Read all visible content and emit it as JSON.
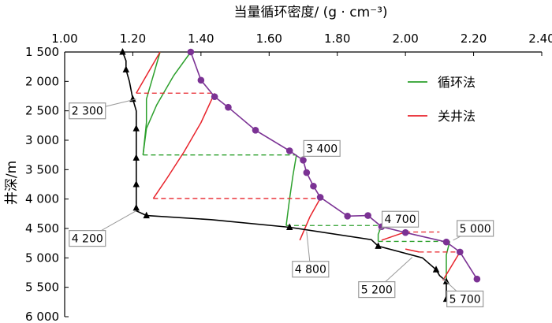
{
  "chart_data": {
    "type": "line",
    "title": "当量循环密度/ (g · cm⁻³)",
    "xlabel": "当量循环密度/ (g · cm⁻³)",
    "ylabel": "井深/m",
    "xlim": [
      1.0,
      2.4
    ],
    "ylim": [
      1500,
      6000
    ],
    "y_inverted": true,
    "x_axis_position": "top",
    "x_ticks": [
      1.0,
      1.2,
      1.4,
      1.6,
      1.8,
      2.0,
      2.2,
      2.4
    ],
    "x_tick_labels": [
      "1.00",
      "1.20",
      "1.40",
      "1.60",
      "1.80",
      "2.00",
      "2.20",
      "2.40"
    ],
    "y_ticks": [
      1500,
      2000,
      2500,
      3000,
      3500,
      4000,
      4500,
      5000,
      5500,
      6000
    ],
    "y_tick_labels": [
      "1 500",
      "2 000",
      "2 500",
      "3 000",
      "3 500",
      "4 000",
      "4 500",
      "5 000",
      "5 500",
      "6 000"
    ],
    "grid": false,
    "legend": {
      "position": "top-right",
      "entries": [
        {
          "label": "循环法",
          "color": "#2ca02c"
        },
        {
          "label": "关井法",
          "color": "#e8232b"
        }
      ]
    },
    "series": [
      {
        "name": "",
        "color": "#7b3294",
        "marker": "circle",
        "points": [
          [
            1.37,
            1500
          ],
          [
            1.4,
            1980
          ],
          [
            1.44,
            2260
          ],
          [
            1.48,
            2440
          ],
          [
            1.56,
            2830
          ],
          [
            1.66,
            3180
          ],
          [
            1.7,
            3340
          ],
          [
            1.71,
            3550
          ],
          [
            1.73,
            3780
          ],
          [
            1.75,
            3970
          ],
          [
            1.83,
            4290
          ],
          [
            1.89,
            4280
          ],
          [
            1.93,
            4470
          ],
          [
            2.0,
            4570
          ],
          [
            2.12,
            4730
          ],
          [
            2.16,
            4900
          ],
          [
            2.21,
            5360
          ]
        ]
      },
      {
        "name": "",
        "color": "#000000",
        "marker": "triangle",
        "points": [
          [
            1.17,
            1500
          ],
          [
            1.18,
            1650
          ],
          [
            1.18,
            1800
          ],
          [
            1.19,
            2000
          ],
          [
            1.2,
            2300
          ],
          [
            1.21,
            2500
          ],
          [
            1.21,
            2800
          ],
          [
            1.21,
            3000
          ],
          [
            1.21,
            3300
          ],
          [
            1.21,
            3500
          ],
          [
            1.21,
            3750
          ],
          [
            1.21,
            4000
          ],
          [
            1.21,
            4150
          ],
          [
            1.21,
            4200
          ],
          [
            1.24,
            4280
          ],
          [
            1.43,
            4350
          ],
          [
            1.66,
            4480
          ],
          [
            1.9,
            4690
          ],
          [
            1.92,
            4800
          ],
          [
            2.05,
            5000
          ],
          [
            2.09,
            5200
          ],
          [
            2.1,
            5300
          ],
          [
            2.12,
            5400
          ],
          [
            2.12,
            5700
          ]
        ]
      }
    ],
    "circulation_method": [
      {
        "depth_label": "2 300",
        "curve": [
          [
            1.28,
            1500
          ],
          [
            1.26,
            1900
          ],
          [
            1.24,
            2300
          ],
          [
            1.24,
            2700
          ],
          [
            1.23,
            3250
          ]
        ],
        "link_depth": 3250,
        "link_to": 1.68
      },
      {
        "depth_label": "3 400",
        "curve": [
          [
            1.37,
            1500
          ],
          [
            1.32,
            1900
          ],
          [
            1.27,
            2400
          ],
          [
            1.24,
            2800
          ],
          [
            1.23,
            3250
          ]
        ]
      },
      {
        "depth_label": "4 800",
        "curve": [
          [
            1.68,
            3250
          ],
          [
            1.67,
            3600
          ],
          [
            1.66,
            4000
          ],
          [
            1.65,
            4450
          ]
        ],
        "link_depth": 4450,
        "link_to": 1.93
      },
      {
        "depth_label": "4 700",
        "curve": [
          [
            1.93,
            4450
          ],
          [
            1.92,
            4600
          ],
          [
            1.92,
            4720
          ]
        ],
        "link_depth": 4720,
        "link_to": 2.13
      },
      {
        "depth_label": "5 000",
        "curve": [
          [
            2.13,
            4720
          ],
          [
            2.12,
            4950
          ],
          [
            2.12,
            5380
          ]
        ]
      }
    ],
    "shut_in_method": [
      {
        "depth_label": "2 300",
        "curve": [
          [
            1.28,
            1500
          ],
          [
            1.21,
            2200
          ]
        ],
        "link_depth": 2200,
        "link_to": 1.44
      },
      {
        "depth_label": "4 200",
        "curve": [
          [
            1.44,
            2200
          ],
          [
            1.4,
            2700
          ],
          [
            1.35,
            3200
          ],
          [
            1.3,
            3650
          ],
          [
            1.26,
            3990
          ]
        ],
        "link_depth": 3990,
        "link_to": 1.75
      },
      {
        "depth_label": "4 800",
        "curve": [
          [
            1.75,
            3990
          ],
          [
            1.72,
            4300
          ],
          [
            1.69,
            4700
          ]
        ]
      },
      {
        "depth_label": "4 700",
        "curve": [
          [
            1.93,
            4700
          ],
          [
            2.0,
            4560
          ]
        ],
        "link_depth": 4560,
        "link_to": 2.1
      },
      {
        "depth_label": "5 200",
        "curve": [
          [
            2.04,
            4900
          ],
          [
            2.0,
            4850
          ]
        ],
        "link_depth": 4900,
        "link_to": 2.16
      },
      {
        "depth_label": "5 700",
        "curve": [
          [
            2.16,
            4900
          ],
          [
            2.11,
            5380
          ]
        ]
      }
    ],
    "annotations": [
      {
        "text": "2 300",
        "x": 1.21,
        "y": 2300
      },
      {
        "text": "3 400",
        "x": 1.69,
        "y": 3300
      },
      {
        "text": "4 200",
        "x": 1.21,
        "y": 4200
      },
      {
        "text": "4 700",
        "x": 1.92,
        "y": 4530
      },
      {
        "text": "4 800",
        "x": 1.71,
        "y": 4550
      },
      {
        "text": "5 000",
        "x": 2.14,
        "y": 4700
      },
      {
        "text": "5 200",
        "x": 2.02,
        "y": 4990
      },
      {
        "text": "5 700",
        "x": 2.11,
        "y": 5350
      }
    ]
  }
}
